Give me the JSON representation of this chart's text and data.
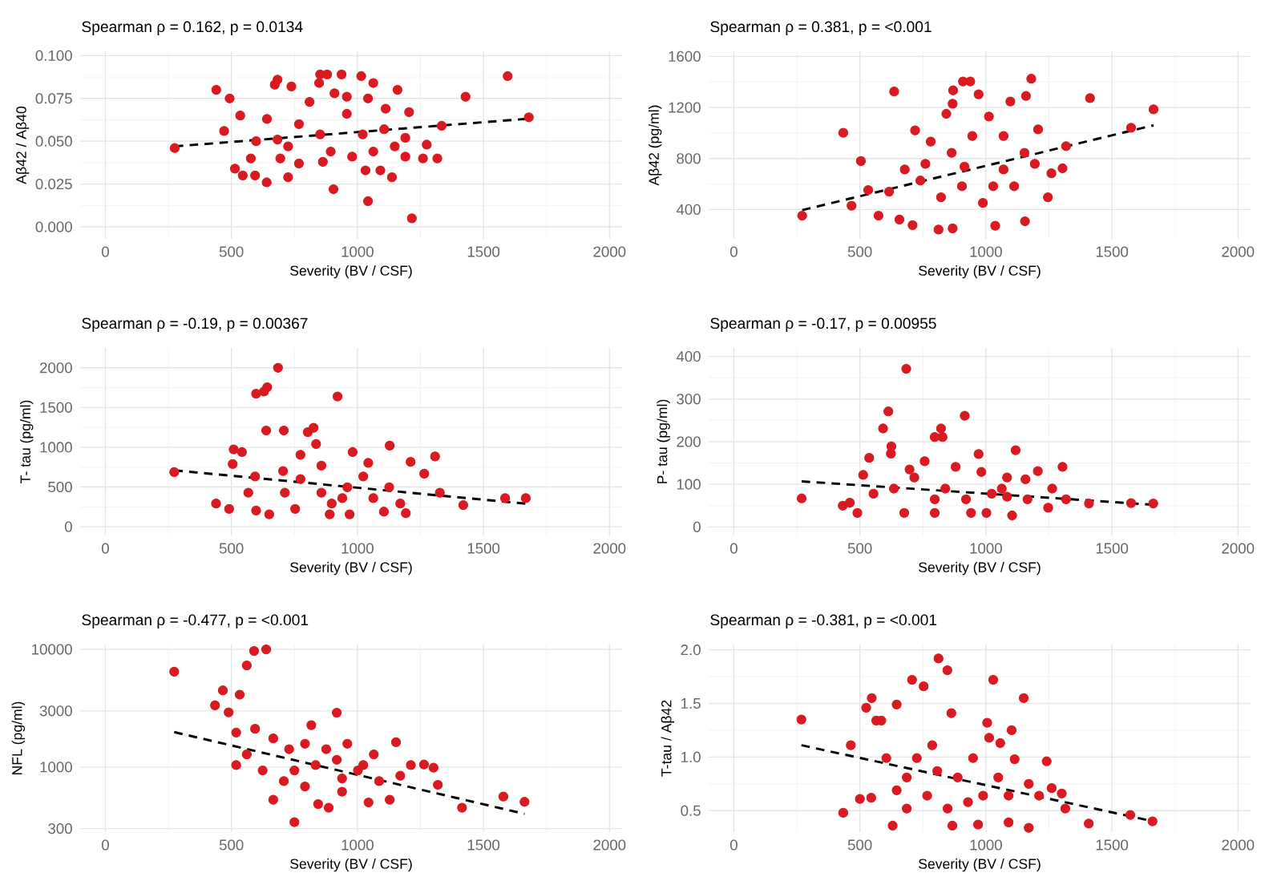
{
  "chart_data": [
    {
      "type": "scatter",
      "title": "Spearman ρ = 0.162, p = 0.0134",
      "xlabel": "Severity (BV / CSF)",
      "ylabel": "Aβ42 / Aβ40",
      "xlim": [
        -100,
        2050
      ],
      "xticks": [
        0,
        500,
        1000,
        1500,
        2000
      ],
      "ylim": [
        -0.007,
        0.1025
      ],
      "yticks": [
        {
          "value": 0,
          "label": "0.000"
        },
        {
          "value": 0.025,
          "label": "0.025"
        },
        {
          "value": 0.05,
          "label": "0.050"
        },
        {
          "value": 0.075,
          "label": "0.075"
        },
        {
          "value": 0.1,
          "label": "0.100"
        }
      ],
      "grid": true,
      "series": [
        {
          "color": "#d91a20",
          "marker": "circle",
          "x": [
            275,
            440,
            493,
            471,
            514,
            545,
            594,
            640,
            683,
            672,
            738,
            848,
            852,
            880,
            937,
            1015,
            1063,
            909,
            1042,
            1112,
            1159,
            1205,
            1216,
            1042,
            905,
            1275,
            1260,
            1317,
            1334,
            1429,
            1596,
            1680,
            1137,
            1148,
            1091,
            1032,
            863,
            768,
            725,
            694,
            577,
            958,
            852,
            768,
            683,
            598,
            535,
            894,
            1021,
            1106,
            1190,
            725,
            810,
            979,
            641,
            1063,
            958,
            1190
          ],
          "values": [
            0.046,
            0.08,
            0.075,
            0.056,
            0.034,
            0.03,
            0.03,
            0.026,
            0.086,
            0.083,
            0.082,
            0.084,
            0.089,
            0.089,
            0.089,
            0.088,
            0.084,
            0.078,
            0.075,
            0.069,
            0.08,
            0.067,
            0.005,
            0.015,
            0.022,
            0.048,
            0.04,
            0.04,
            0.059,
            0.076,
            0.088,
            0.064,
            0.029,
            0.047,
            0.033,
            0.033,
            0.038,
            0.037,
            0.029,
            0.04,
            0.04,
            0.066,
            0.054,
            0.06,
            0.051,
            0.05,
            0.065,
            0.044,
            0.054,
            0.057,
            0.052,
            0.047,
            0.073,
            0.041,
            0.063,
            0.044,
            0.076,
            0.041
          ]
        },
        {
          "type": "line",
          "color": "#000000",
          "line_style": "dashed",
          "marker": "none",
          "x": [
            275,
            1665
          ],
          "values": [
            0.047,
            0.063
          ]
        }
      ]
    },
    {
      "type": "scatter",
      "title": "Spearman ρ = 0.381, p = <0.001",
      "xlabel": "Severity (BV / CSF)",
      "ylabel": "Aβ42 (pg/ml)",
      "xlim": [
        -100,
        2050
      ],
      "xticks": [
        0,
        500,
        1000,
        1500,
        2000
      ],
      "ylim": [
        170,
        1640
      ],
      "yticks": [
        400,
        800,
        1200,
        1600
      ],
      "grid": true,
      "series": [
        {
          "color": "#d91a20",
          "marker": "circle",
          "x": [
            271,
            434,
            504,
            467,
            533,
            636,
            868,
            870,
            909,
            938,
            971,
            1180,
            1159,
            1097,
            1012,
            1413,
            1576,
            1665,
            1318,
            1304,
            1260,
            1246,
            1207,
            1155,
            1037,
            868,
            812,
            709,
            574,
            657,
            760,
            864,
            946,
            1070,
            1112,
            988,
            905,
            822,
            740,
            678,
            616,
            781,
            1070,
            915,
            1194,
            719,
            843,
            1029,
            1153
          ],
          "values": [
            352,
            1002,
            780,
            430,
            553,
            1325,
            1229,
            1334,
            1404,
            1404,
            1303,
            1425,
            1290,
            1247,
            1129,
            1273,
            1041,
            1185,
            897,
            723,
            684,
            496,
            1028,
            308,
            273,
            252,
            243,
            278,
            352,
            321,
            758,
            845,
            976,
            714,
            583,
            452,
            583,
            496,
            627,
            714,
            540,
            932,
            976,
            736,
            758,
            1020,
            1150,
            583,
            845
          ]
        },
        {
          "type": "line",
          "color": "#000000",
          "line_style": "dashed",
          "marker": "none",
          "x": [
            271,
            1665
          ],
          "values": [
            395,
            1060
          ]
        }
      ]
    },
    {
      "type": "scatter",
      "title": "Spearman ρ = -0.19, p = 0.00367",
      "xlabel": "Severity (BV / CSF)",
      "ylabel": "T- tau (pg/ml)",
      "xlim": [
        -100,
        2050
      ],
      "xticks": [
        0,
        500,
        1000,
        1500,
        2000
      ],
      "ylim": [
        -110,
        2250
      ],
      "yticks": [
        0,
        500,
        1000,
        1500,
        2000
      ],
      "grid": true,
      "series": [
        {
          "color": "#d91a20",
          "marker": "circle",
          "x": [
            273,
            439,
            509,
            505,
            491,
            542,
            598,
            629,
            642,
            685,
            921,
            638,
            708,
            826,
            803,
            1128,
            1211,
            1308,
            1265,
            1327,
            1420,
            1586,
            1668,
            1105,
            1192,
            969,
            890,
            650,
            598,
            1043,
            981,
            857,
            774,
            712,
            857,
            960,
            1063,
            1126,
            774,
            705,
            594,
            567,
            898,
            1023,
            1170,
            753,
            836,
            940
          ],
          "values": [
            687,
            292,
            973,
            789,
            224,
            939,
            1673,
            1701,
            1755,
            2000,
            1639,
            1211,
            1211,
            1245,
            1190,
            1020,
            816,
            884,
            667,
            428,
            272,
            360,
            360,
            190,
            170,
            156,
            156,
            156,
            204,
            803,
            939,
            769,
            599,
            429,
            429,
            497,
            360,
            497,
            905,
            701,
            633,
            429,
            292,
            633,
            292,
            224,
            1041,
            360
          ]
        },
        {
          "type": "line",
          "color": "#000000",
          "line_style": "dashed",
          "marker": "none",
          "x": [
            273,
            1668
          ],
          "values": [
            710,
            290
          ]
        }
      ]
    },
    {
      "type": "scatter",
      "title": "Spearman ρ = -0.17, p = 0.00955",
      "xlabel": "Severity (BV / CSF)",
      "ylabel": "P- tau (pg/ml)",
      "xlim": [
        -100,
        2050
      ],
      "xticks": [
        0,
        500,
        1000,
        1500,
        2000
      ],
      "ylim": [
        -20,
        420
      ],
      "yticks": [
        0,
        100,
        200,
        300,
        400
      ],
      "grid": true,
      "series": [
        {
          "color": "#d91a20",
          "marker": "circle",
          "x": [
            269,
            432,
            460,
            490,
            537,
            592,
            613,
            625,
            623,
            684,
            916,
            822,
            828,
            797,
            971,
            1118,
            1157,
            1206,
            1263,
            1304,
            1318,
            1409,
            1576,
            1664,
            1247,
            1104,
            1002,
            941,
            797,
            676,
            982,
            880,
            1084,
            757,
            716,
            635,
            554,
            839,
            921,
            1023,
            1165,
            1084,
            797,
            513,
            1063,
            697
          ],
          "values": [
            67,
            50,
            57,
            33,
            162,
            231,
            271,
            189,
            172,
            371,
            261,
            231,
            211,
            211,
            171,
            180,
            112,
            131,
            90,
            141,
            65,
            55,
            56,
            55,
            45,
            27,
            33,
            33,
            33,
            33,
            129,
            141,
            116,
            154,
            116,
            90,
            78,
            90,
            65,
            78,
            65,
            71,
            65,
            122,
            90,
            135
          ]
        },
        {
          "type": "line",
          "color": "#000000",
          "line_style": "dashed",
          "marker": "none",
          "x": [
            269,
            1664
          ],
          "values": [
            107,
            52
          ]
        }
      ]
    },
    {
      "type": "scatter",
      "title": "Spearman ρ = -0.477, p = <0.001",
      "xlabel": "Severity (BV / CSF)",
      "ylabel": "NFL (pg/ml)",
      "xlim": [
        -100,
        2050
      ],
      "xticks": [
        0,
        500,
        1000,
        1500,
        2000
      ],
      "ylim": [
        280,
        11000
      ],
      "yticks": [
        300,
        1000,
        3000,
        10000
      ],
      "log": "y",
      "grid": true,
      "series": [
        {
          "color": "#d91a20",
          "marker": "circle",
          "x": [
            273,
            435,
            466,
            489,
            533,
            561,
            590,
            638,
            918,
            519,
            594,
            817,
            1153,
            1264,
            1302,
            1319,
            1415,
            1579,
            1663,
            750,
            666,
            844,
            886,
            1044,
            1128,
            939,
            792,
            708,
            624,
            561,
            519,
            834,
            918,
            1002,
            1065,
            1086,
            1170,
            729,
            666,
            792,
            876,
            960,
            1023,
            1212,
            750,
            939
          ],
          "values": [
            6460,
            3340,
            4480,
            2917,
            4124,
            7310,
            9690,
            10000,
            2893,
            1963,
            2112,
            2271,
            1627,
            1050,
            986,
            706,
            451,
            561,
            506,
            340,
            527,
            484,
            451,
            500,
            527,
            617,
            684,
            759,
            935,
            1280,
            1038,
            1038,
            1153,
            935,
            1280,
            759,
            843,
            1419,
            1750,
            1578,
            1419,
            1578,
            1038,
            1038,
            935,
            800
          ]
        },
        {
          "type": "line",
          "color": "#000000",
          "line_style": "dashed",
          "marker": "none",
          "x": [
            273,
            1663
          ],
          "values": [
            1980,
            400
          ]
        }
      ]
    },
    {
      "type": "scatter",
      "title": "Spearman ρ = -0.381, p = <0.001",
      "xlabel": "Severity (BV / CSF)",
      "ylabel": "T-tau / Aβ42",
      "xlim": [
        -100,
        2050
      ],
      "xticks": [
        0,
        500,
        1000,
        1500,
        2000
      ],
      "ylim": [
        0.3,
        2.05
      ],
      "yticks": [
        {
          "value": 0.5,
          "label": "0.5"
        },
        {
          "value": 1,
          "label": "1.0"
        },
        {
          "value": 1.5,
          "label": "1.5"
        },
        {
          "value": 2,
          "label": "2.0"
        }
      ],
      "grid": true,
      "series": [
        {
          "color": "#d91a20",
          "marker": "circle",
          "x": [
            268,
            434,
            464,
            525,
            547,
            565,
            585,
            500,
            545,
            630,
            646,
            707,
            753,
            812,
            847,
            863,
            1029,
            1005,
            1013,
            1057,
            1150,
            1102,
            1114,
            1241,
            1261,
            1301,
            1315,
            1408,
            1573,
            1661,
            1170,
            1090,
            969,
            867,
            929,
            888,
            807,
            726,
            686,
            646,
            605,
            767,
            848,
            989,
            1049,
            1090,
            1170,
            1211,
            686,
            949,
            787
          ],
          "values": [
            1.35,
            0.48,
            1.11,
            1.46,
            1.55,
            1.34,
            1.34,
            0.61,
            0.62,
            0.36,
            1.49,
            1.72,
            1.66,
            1.92,
            1.81,
            1.41,
            1.72,
            1.32,
            1.18,
            1.13,
            1.55,
            1.25,
            0.98,
            0.96,
            0.71,
            0.66,
            0.52,
            0.38,
            0.46,
            0.4,
            0.34,
            0.39,
            0.37,
            0.36,
            0.58,
            0.81,
            0.87,
            0.99,
            0.81,
            0.69,
            0.99,
            0.64,
            0.52,
            0.64,
            0.81,
            0.64,
            0.75,
            0.64,
            0.52,
            0.99,
            1.11
          ]
        },
        {
          "type": "line",
          "color": "#000000",
          "line_style": "dashed",
          "marker": "none",
          "x": [
            268,
            1665
          ],
          "values": [
            1.11,
            0.4
          ]
        }
      ]
    }
  ]
}
